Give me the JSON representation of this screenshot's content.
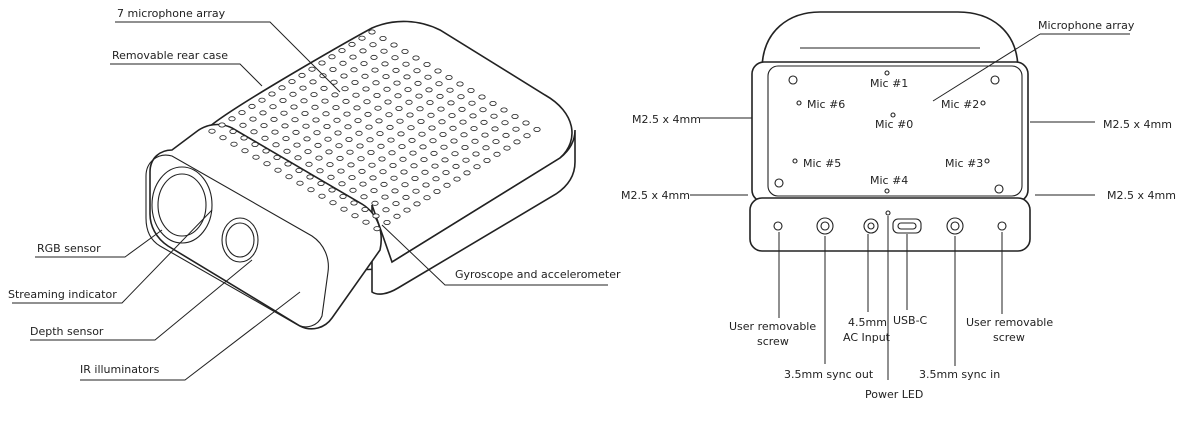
{
  "left_labels": {
    "mic_array": "7 microphone array",
    "rear_case": "Removable rear case",
    "rgb": "RGB sensor",
    "streaming": "Streaming indicator",
    "depth": "Depth sensor",
    "ir": "IR illuminators",
    "gyro": "Gyroscope and accelerometer"
  },
  "right_labels": {
    "mic_array": "Microphone array",
    "screw_tl": "M2.5 x 4mm",
    "screw_tr": "M2.5 x 4mm",
    "screw_bl": "M2.5 x 4mm",
    "screw_br": "M2.5 x 4mm",
    "mic0": "Mic #0",
    "mic1": "Mic #1",
    "mic2": "Mic #2",
    "mic3": "Mic #3",
    "mic4": "Mic #4",
    "mic5": "Mic #5",
    "mic6": "Mic #6",
    "user_screw_left": [
      "User removable",
      "screw"
    ],
    "sync_out": "3.5mm sync out",
    "ac_input": [
      "4.5mm",
      "AC Input"
    ],
    "usb_c": "USB-C",
    "power_led": "Power LED",
    "sync_in": "3.5mm sync in",
    "user_screw_right": [
      "User removable",
      "screw"
    ]
  }
}
